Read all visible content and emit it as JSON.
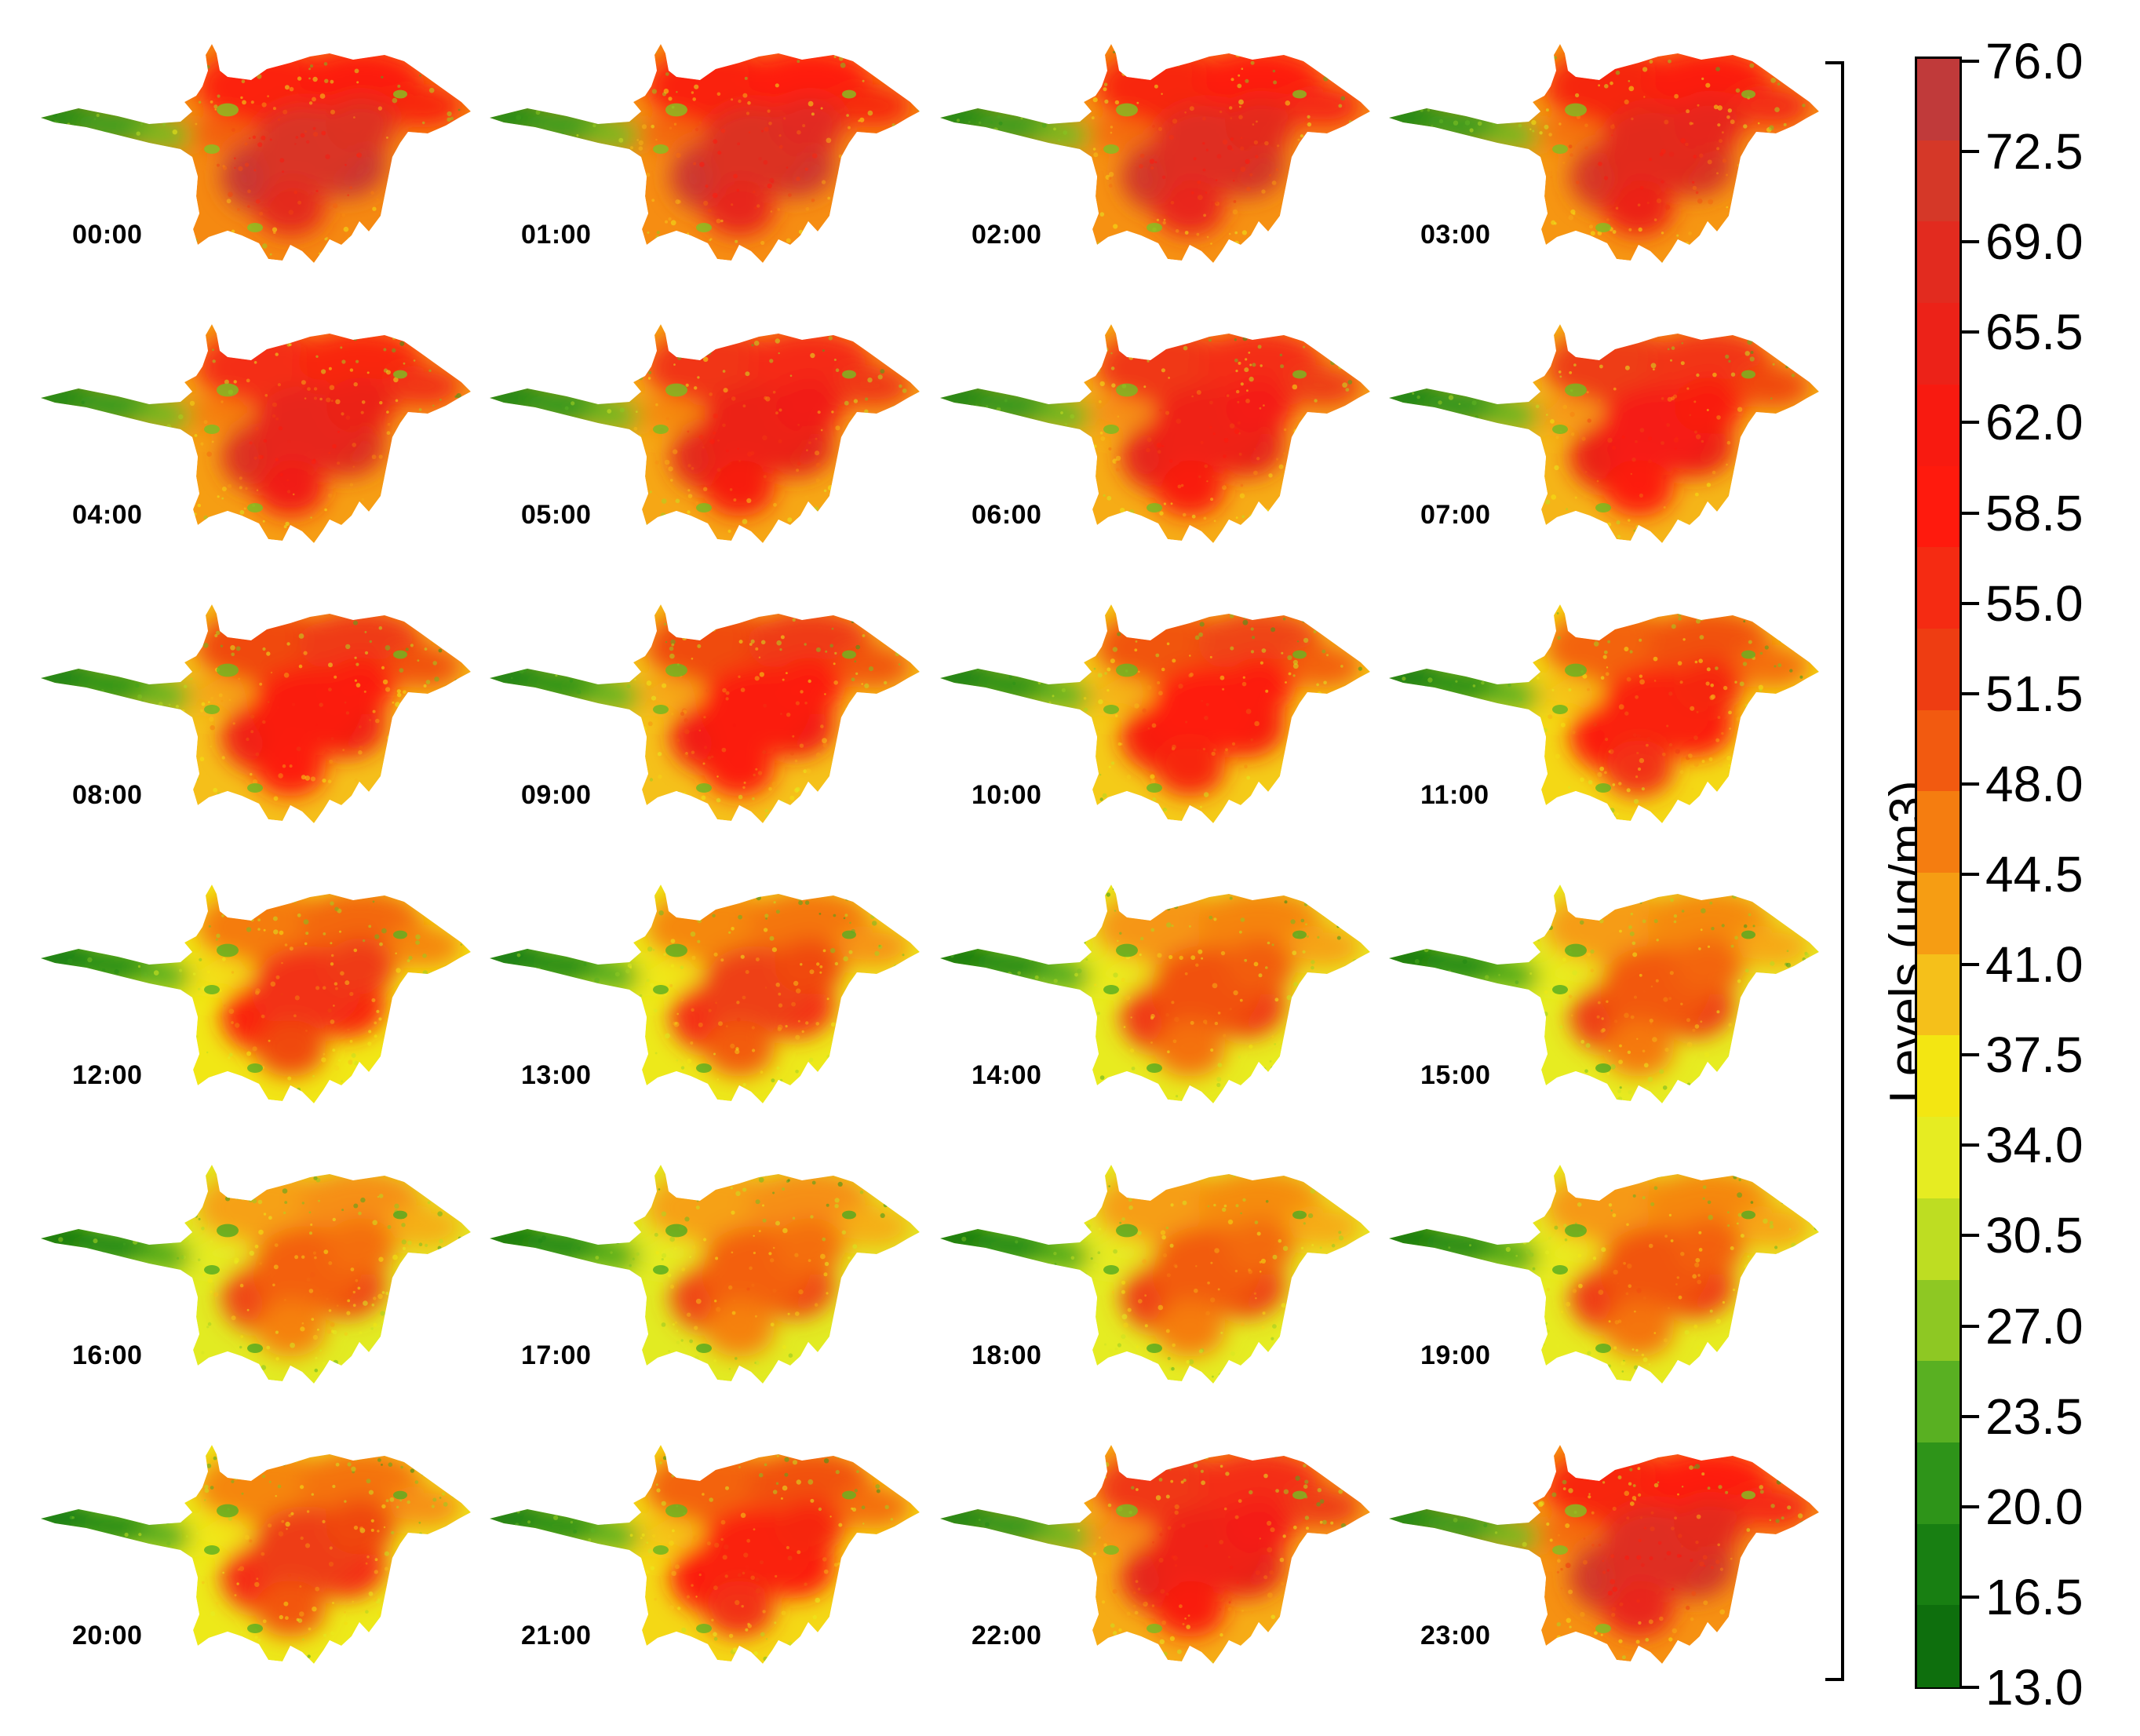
{
  "legend": {
    "title": "Levels (μg/m3)",
    "ticks": [
      "76.0",
      "72.5",
      "69.0",
      "65.5",
      "62.0",
      "58.5",
      "55.0",
      "51.5",
      "48.0",
      "44.5",
      "41.0",
      "37.5",
      "34.0",
      "30.5",
      "27.0",
      "23.5",
      "20.0",
      "16.5",
      "13.0"
    ],
    "color_steps": [
      "#c03a3a",
      "#d53828",
      "#e22b1f",
      "#ec2218",
      "#f81a10",
      "#ff1a0d",
      "#f52b12",
      "#ee3d12",
      "#f25a10",
      "#f57d10",
      "#f69d13",
      "#f5c01a",
      "#f3e612",
      "#e6ec22",
      "#bedd22",
      "#8ec823",
      "#59b022",
      "#2e9419",
      "#187f12",
      "#0e6f0d"
    ]
  },
  "panels": [
    {
      "label": "00:00",
      "intensity": 0.82
    },
    {
      "label": "01:00",
      "intensity": 0.8
    },
    {
      "label": "02:00",
      "intensity": 0.78
    },
    {
      "label": "03:00",
      "intensity": 0.76
    },
    {
      "label": "04:00",
      "intensity": 0.72
    },
    {
      "label": "05:00",
      "intensity": 0.68
    },
    {
      "label": "06:00",
      "intensity": 0.66
    },
    {
      "label": "07:00",
      "intensity": 0.62
    },
    {
      "label": "08:00",
      "intensity": 0.58
    },
    {
      "label": "09:00",
      "intensity": 0.57
    },
    {
      "label": "10:00",
      "intensity": 0.53
    },
    {
      "label": "11:00",
      "intensity": 0.48
    },
    {
      "label": "12:00",
      "intensity": 0.4
    },
    {
      "label": "13:00",
      "intensity": 0.35
    },
    {
      "label": "14:00",
      "intensity": 0.3
    },
    {
      "label": "15:00",
      "intensity": 0.28
    },
    {
      "label": "16:00",
      "intensity": 0.26
    },
    {
      "label": "17:00",
      "intensity": 0.26
    },
    {
      "label": "18:00",
      "intensity": 0.27
    },
    {
      "label": "19:00",
      "intensity": 0.29
    },
    {
      "label": "20:00",
      "intensity": 0.36
    },
    {
      "label": "21:00",
      "intensity": 0.48
    },
    {
      "label": "22:00",
      "intensity": 0.66
    },
    {
      "label": "23:00",
      "intensity": 0.78
    }
  ]
}
